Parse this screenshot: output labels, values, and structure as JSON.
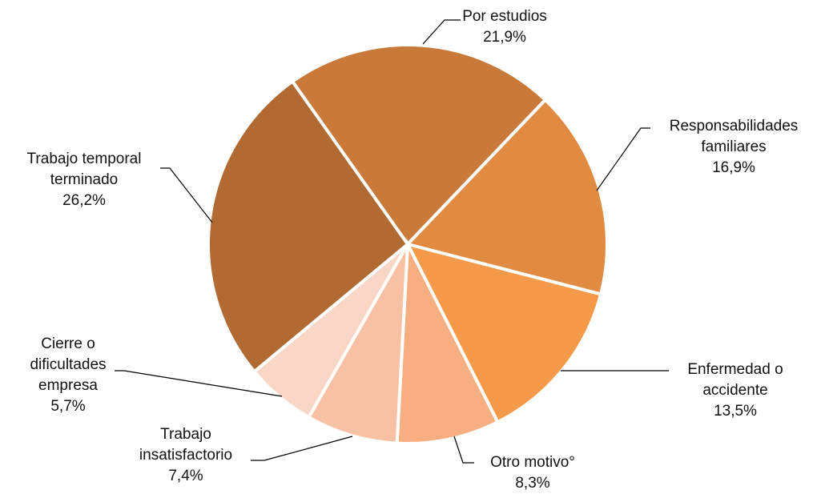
{
  "chart_data": {
    "type": "pie",
    "categories": [
      "Por estudios",
      "Responsabilidades familiares",
      "Enfermedad o accidente",
      "Otro motivo°",
      "Trabajo insatisfactorio",
      "Cierre o dificultades empresa",
      "Trabajo temporal terminado"
    ],
    "values": [
      21.9,
      16.9,
      13.5,
      8.3,
      7.4,
      5.7,
      26.2
    ],
    "value_labels": [
      "21,9%",
      "16,9%",
      "13,5%",
      "8,3%",
      "7,4%",
      "5,7%",
      "26,2%"
    ],
    "colors": [
      "#C97A3A",
      "#E08A42",
      "#F59A4A",
      "#F7AE80",
      "#F8C1A4",
      "#F9D6C6",
      "#B06A32"
    ]
  }
}
